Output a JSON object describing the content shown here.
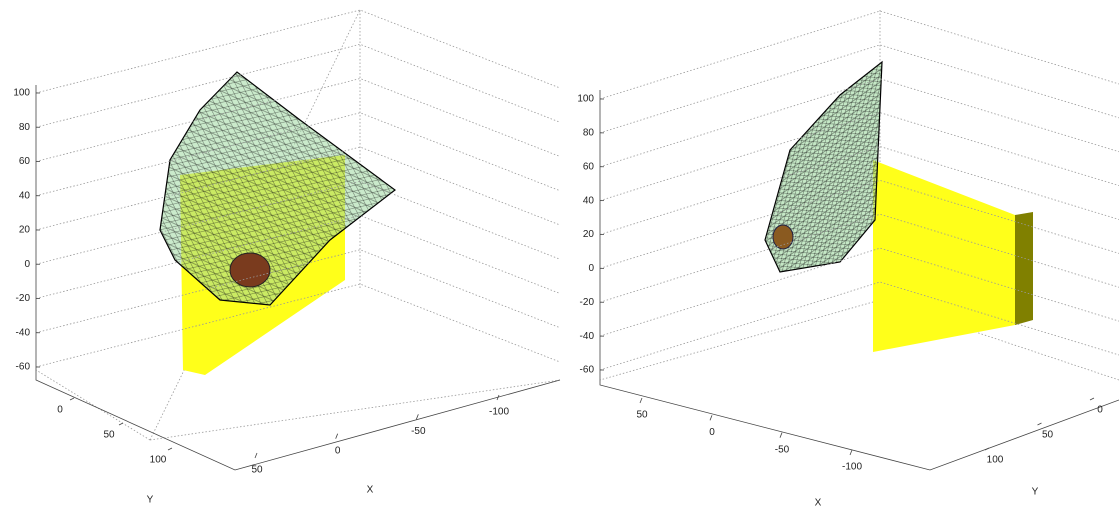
{
  "chart_data": [
    {
      "type": "mesh3d",
      "xlabel": "X",
      "ylabel": "Y",
      "xlim": [
        -100,
        50
      ],
      "xticks": [
        -100,
        -50,
        0,
        50
      ],
      "ylim": [
        0,
        100
      ],
      "yticks": [
        0,
        50,
        100
      ],
      "zlim": [
        -60,
        100
      ],
      "zticks": [
        -60,
        -40,
        -20,
        0,
        20,
        40,
        60,
        80,
        100
      ],
      "grid": true
    },
    {
      "type": "mesh3d",
      "xlabel": "X",
      "ylabel": "Y",
      "xlim": [
        -100,
        50
      ],
      "xticks": [
        -100,
        -50,
        0,
        50
      ],
      "ylim": [
        0,
        100
      ],
      "yticks": [
        0,
        50,
        100
      ],
      "zlim": [
        -60,
        100
      ],
      "zticks": [
        -60,
        -40,
        -20,
        0,
        20,
        40,
        60,
        80,
        100
      ],
      "grid": true
    }
  ]
}
